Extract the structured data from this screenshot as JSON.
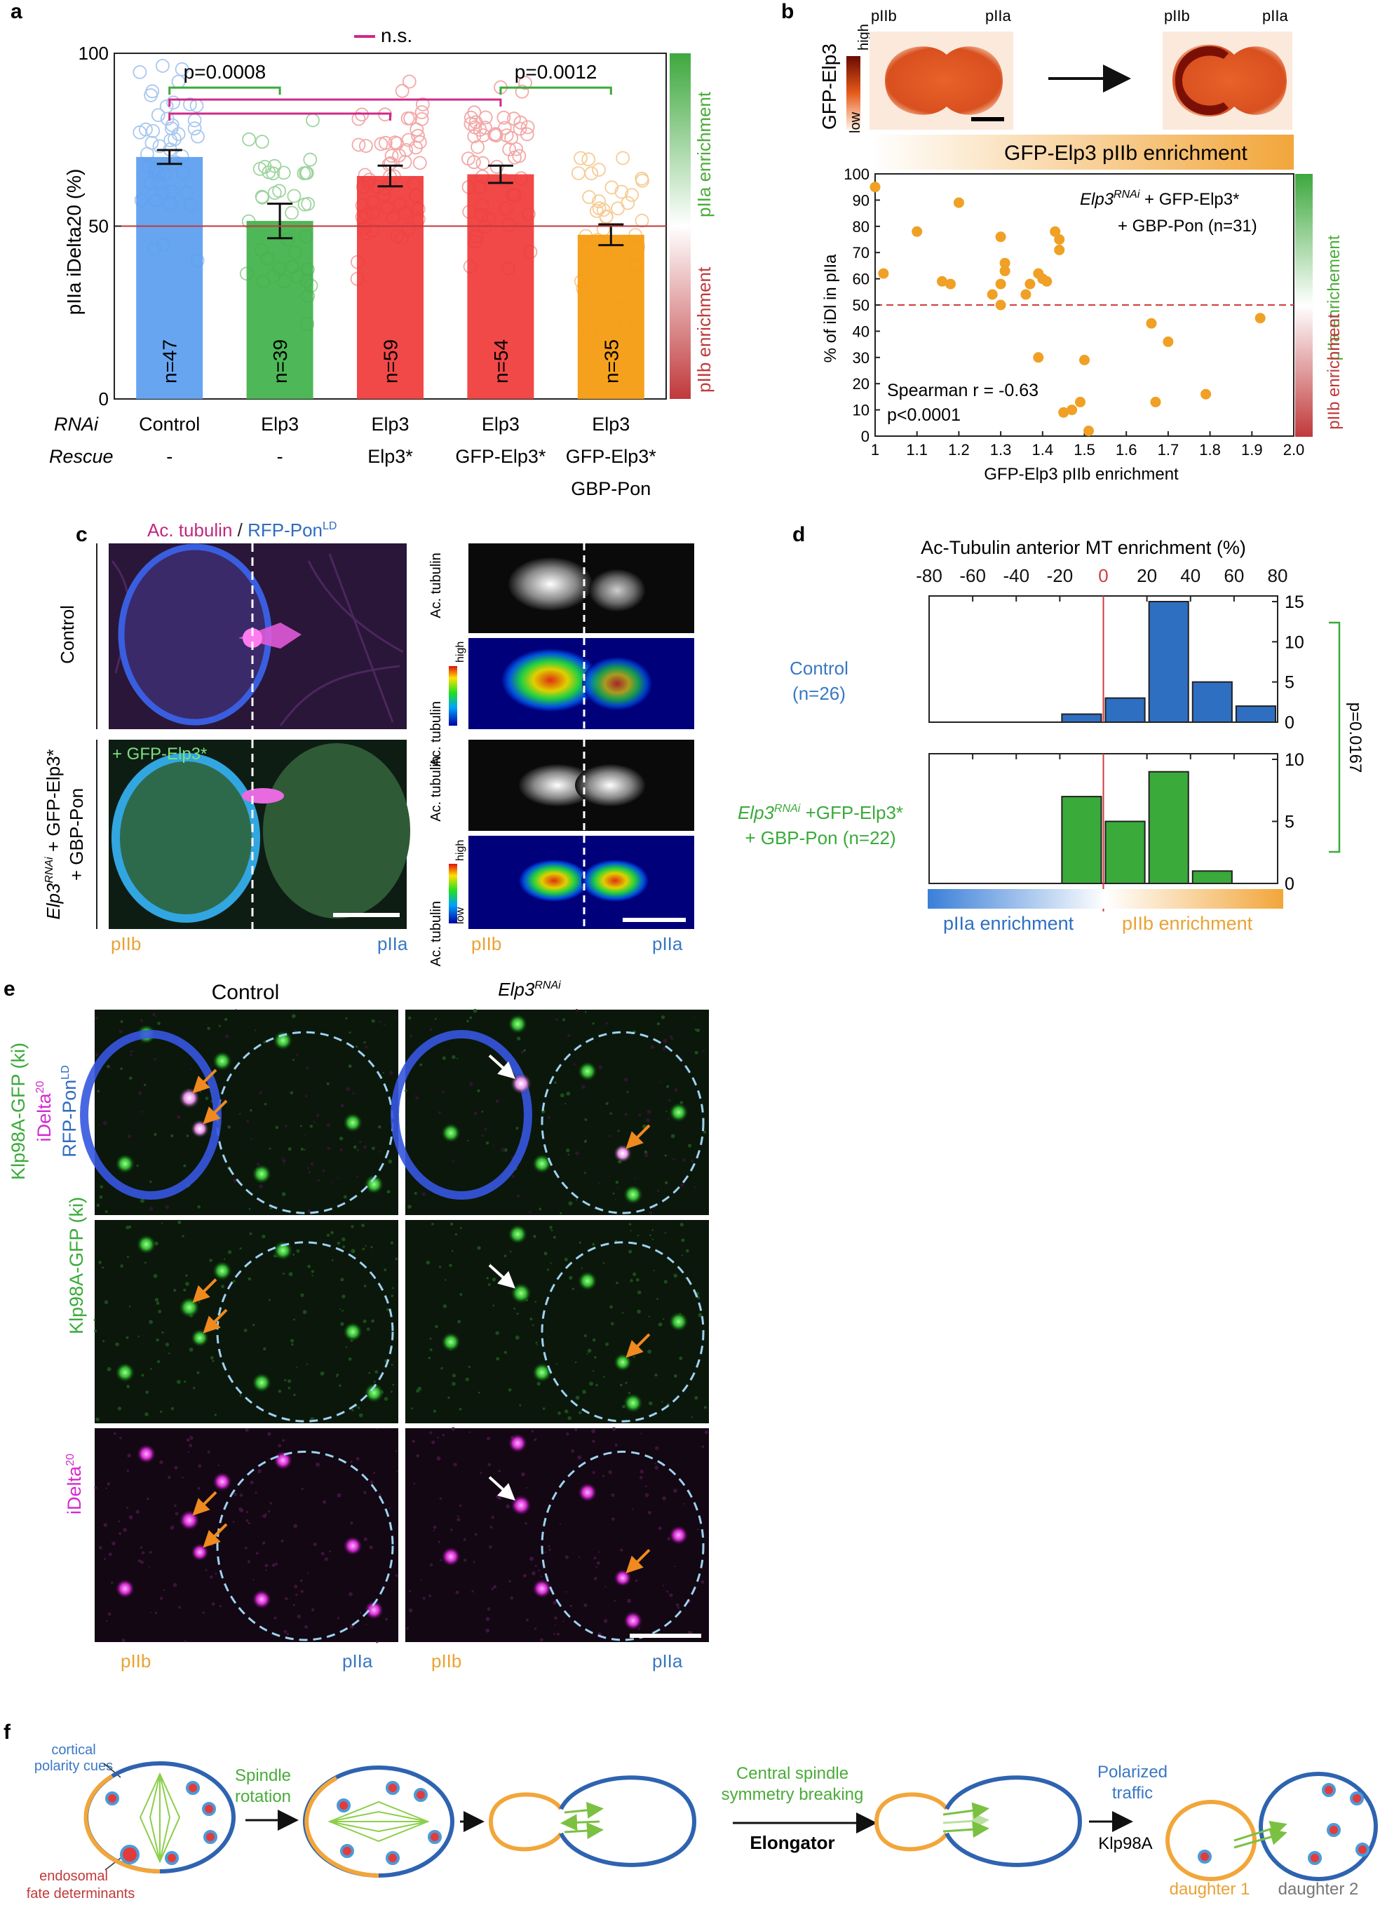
{
  "panel_labels": {
    "a": "a",
    "b": "b",
    "c": "c",
    "d": "d",
    "e": "e",
    "f": "f"
  },
  "colors": {
    "blue": "#4a8fe0",
    "green": "#3aaa3a",
    "red": "#f03a3a",
    "orange": "#f59a0c",
    "magenta": "#d0288a",
    "piib_orange": "#e9a334",
    "piia_blue": "#3a78c4",
    "dark_red": "#c0393b"
  },
  "panel_a": {
    "chart_data": {
      "type": "bar",
      "ylabel": "pIIa iDelta20 (%)",
      "ylim": [
        0,
        100
      ],
      "yticks": [
        "0",
        "50",
        "100"
      ],
      "reference_line": 50,
      "categories": [
        "Control",
        "Elp3",
        "Elp3",
        "Elp3",
        "Elp3"
      ],
      "values": [
        70,
        51.5,
        64.5,
        65,
        47.5
      ],
      "errors": [
        2,
        5,
        3,
        2.5,
        3
      ],
      "bar_colors": [
        "#5b9ef0",
        "#41b24a",
        "#f03a3a",
        "#f03a3a",
        "#f59a0c"
      ],
      "dot_colors": [
        "#a9c8ef",
        "#9fd49f",
        "#f3a8a8",
        "#f3a8a8",
        "#f6cc96"
      ],
      "n_labels": [
        "n=47",
        "n=39",
        "n=59",
        "n=54",
        "n=35"
      ],
      "comparisons": [
        {
          "label": "p=0.0008",
          "from": 0,
          "to": 1
        },
        {
          "label": "p=0.0012",
          "from": 3,
          "to": 4
        },
        {
          "label": "n.s.",
          "from": 0,
          "to": 2
        },
        {
          "label": "n.s.",
          "from": 0,
          "to": 3
        }
      ],
      "ns_legend": "n.s.",
      "row_labels": {
        "rnai": "RNAi",
        "rescue": "Rescue"
      },
      "rnai_labels": [
        "Control",
        "Elp3",
        "Elp3",
        "Elp3",
        "Elp3"
      ],
      "rescue_labels": [
        "-",
        "-",
        "Elp3*",
        "GFP-Elp3*",
        "GFP-Elp3*"
      ],
      "rescue_labels_2": [
        "",
        "",
        "",
        "",
        "GBP-Pon"
      ],
      "side_bar_top": "pIIa enrichment",
      "side_bar_bottom": "pIIb enrichment"
    }
  },
  "panel_b": {
    "image_label": "GFP-Elp3",
    "scale_low": "low",
    "scale_high": "high",
    "piib": "pIIb",
    "piia": "pIIa",
    "enrichment_banner": "GFP-Elp3 pIIb enrichment",
    "chart_data": {
      "type": "scatter",
      "xlabel": "GFP-Elp3 pIIb enrichment",
      "ylabel": "% of iDl in pIIa",
      "xlim": [
        1.0,
        2.0
      ],
      "ylim": [
        0,
        100
      ],
      "xticks": [
        "1",
        "1.1",
        "1.2",
        "1.3",
        "1.4",
        "1.5",
        "1.6",
        "1.7",
        "1.8",
        "1.9",
        "2.0"
      ],
      "yticks": [
        "0",
        "10",
        "20",
        "30",
        "40",
        "50",
        "60",
        "70",
        "80",
        "90",
        "100"
      ],
      "reference_line": 50,
      "legend_line1": "Elp3",
      "legend_line1_sup": "RNAi",
      "legend_line1_rest": " + GFP-Elp3*",
      "legend_line2": "+ GBP-Pon (n=31)",
      "stat1": "Spearman r = -0.63",
      "stat2": "p<0.0001",
      "points": [
        [
          1.0,
          95
        ],
        [
          1.02,
          62
        ],
        [
          1.1,
          78
        ],
        [
          1.16,
          59
        ],
        [
          1.18,
          58
        ],
        [
          1.2,
          89
        ],
        [
          1.28,
          54
        ],
        [
          1.3,
          76
        ],
        [
          1.31,
          66
        ],
        [
          1.31,
          63
        ],
        [
          1.3,
          58
        ],
        [
          1.3,
          50
        ],
        [
          1.36,
          54
        ],
        [
          1.37,
          58
        ],
        [
          1.39,
          62
        ],
        [
          1.4,
          60
        ],
        [
          1.41,
          59
        ],
        [
          1.43,
          78
        ],
        [
          1.44,
          75
        ],
        [
          1.44,
          71
        ],
        [
          1.39,
          30
        ],
        [
          1.5,
          29
        ],
        [
          1.49,
          13
        ],
        [
          1.47,
          10
        ],
        [
          1.45,
          9
        ],
        [
          1.51,
          2
        ],
        [
          1.66,
          43
        ],
        [
          1.7,
          36
        ],
        [
          1.67,
          13
        ],
        [
          1.79,
          16
        ],
        [
          1.92,
          45
        ]
      ],
      "side_bar_top": "pIIa enrichement",
      "side_bar_bottom": "pIIb enrichment"
    }
  },
  "panel_c": {
    "title_ac": "Ac. tubulin",
    "title_sep": " / ",
    "title_rfp": "RFP-Pon",
    "title_rfp_sup": "LD",
    "row1_label": "Control",
    "row2_label_1": "Elp3",
    "row2_label_sup": "RNAi",
    "row2_label_2": " + GFP-Elp3*",
    "row2_label_3": "+ GBP-Pon",
    "gfp_label": "+ GFP-Elp3*",
    "side_ac": "Ac. tubulin",
    "heat_low": "low",
    "heat_high": "high",
    "piib": "pIIb",
    "piia": "pIIa"
  },
  "panel_d": {
    "chart_data": {
      "type": "bar",
      "title": "Ac-Tubulin anterior MT enrichment (%)",
      "xticks": [
        "-80",
        "-60",
        "-40",
        "-20",
        "0",
        "20",
        "40",
        "60",
        "80"
      ],
      "xlim": [
        -80,
        80
      ],
      "bin_width": 20,
      "series": [
        {
          "name": "Control (n=26)",
          "name_line1": "Control",
          "name_line2": "(n=26)",
          "bin_starts": [
            -20,
            0,
            20,
            40,
            60
          ],
          "counts": [
            1,
            3,
            15,
            5,
            2
          ],
          "ylim": [
            0,
            15
          ],
          "yticks": [
            "0",
            "5",
            "10",
            "15"
          ],
          "color": "#2f6fc2"
        },
        {
          "name_line1": "Elp3",
          "name_sup": "RNAi",
          "name_line1_rest": " +GFP-Elp3*",
          "name_line2": "+ GBP-Pon (n=22)",
          "bin_starts": [
            -20,
            0,
            20,
            40
          ],
          "counts": [
            7,
            5,
            9,
            1
          ],
          "ylim": [
            0,
            10
          ],
          "yticks": [
            "0",
            "5",
            "10"
          ],
          "color": "#3aaa3a"
        }
      ],
      "pvalue": "p=0.0167",
      "gradient_left": "pIIa enrichment",
      "gradient_right": "pIIb enrichment"
    }
  },
  "panel_e": {
    "col_control": "Control",
    "col_rnai": "Elp3",
    "col_rnai_sup": "RNAi",
    "row1_a": "Klp98A-GFP (ki)",
    "row1_b": "iDelta",
    "row1_b_sup": "20",
    "row1_c": "RFP-Pon",
    "row1_c_sup": "LD",
    "row2": "Klp98A-GFP (ki)",
    "row3": "iDelta",
    "row3_sup": "20",
    "piib": "pIIb",
    "piia": "pIIa"
  },
  "panel_f": {
    "cortical": "cortical",
    "polarity": "polarity cues",
    "endosomal": "endosomal",
    "fate": "fate determinants",
    "spindle": "Spindle",
    "rotation": "rotation",
    "central": "Central spindle",
    "symmetry": "symmetry breaking",
    "elongator": "Elongator",
    "polarized": "Polarized",
    "traffic": "traffic",
    "klp": "Klp98A",
    "daughter1": "daughter 1",
    "daughter2": "daughter 2"
  }
}
